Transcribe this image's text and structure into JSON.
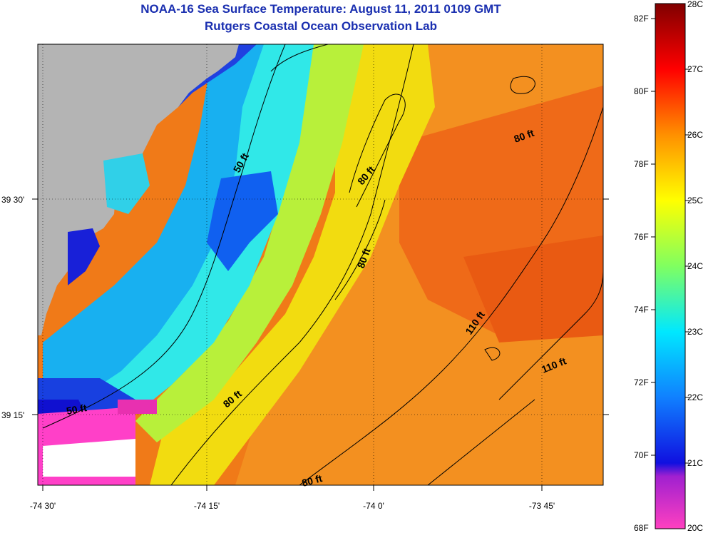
{
  "title": "NOAA-16 Sea Surface Temperature:  August 11, 2011 0109 GMT",
  "subtitle": "Rutgers Coastal Ocean Observation Lab",
  "map": {
    "x_axis_labels": [
      "-74 30'",
      "-74 15'",
      "-74 0'",
      "-73 45'"
    ],
    "y_axis_labels": [
      "39 30'",
      "39 15'"
    ],
    "depth_contours": [
      "50 ft",
      "50 ft",
      "80 ft",
      "80 ft",
      "80 ft",
      "80 ft",
      "80 ft",
      "110 ft",
      "110 ft"
    ],
    "land_color": "#b4b4b4",
    "palette": [
      "#ff40c0",
      "#2020e0",
      "#00e0ff",
      "#ffff00",
      "#ff8000",
      "#ff0000",
      "#800000"
    ]
  },
  "colorbar": {
    "fahrenheit_labels": [
      "82F",
      "80F",
      "78F",
      "76F",
      "74F",
      "72F",
      "70F",
      "68F"
    ],
    "celsius_labels": [
      "28C",
      "27C",
      "26C",
      "25C",
      "24C",
      "23C",
      "22C",
      "21C",
      "20C"
    ],
    "range_c": [
      20,
      28
    ]
  }
}
